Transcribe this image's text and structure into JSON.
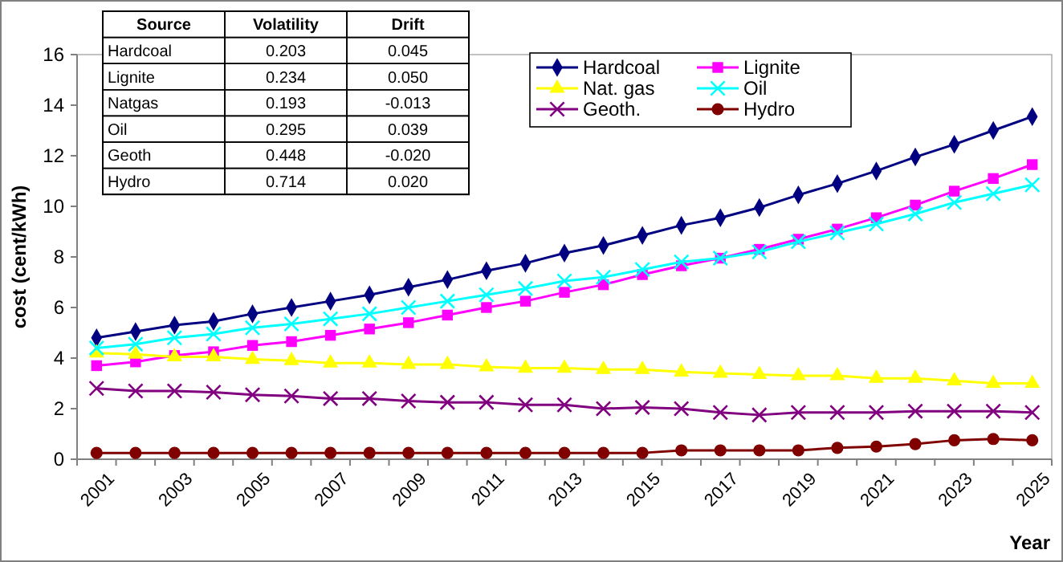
{
  "chart_data": {
    "type": "line",
    "ylabel": "cost (cent/kWh)",
    "xlabel": "Year",
    "categories": [
      "2001",
      null,
      "2003",
      null,
      "2005",
      null,
      "2007",
      null,
      "2009",
      null,
      "2011",
      null,
      "2013",
      null,
      "2015",
      null,
      "2017",
      null,
      "2019",
      null,
      "2021",
      null,
      "2023",
      null,
      "2025"
    ],
    "ylim": [
      0,
      16
    ],
    "yticks": [
      0,
      2,
      4,
      6,
      8,
      10,
      12,
      14,
      16
    ],
    "grid": false,
    "legend": "top right",
    "line_style": "solid",
    "series": [
      {
        "name": "Hardcoal",
        "color": "#000080",
        "marker": "diamond",
        "values": [
          4.8,
          5.05,
          5.3,
          5.45,
          5.75,
          6.0,
          6.25,
          6.5,
          6.8,
          7.1,
          7.45,
          7.75,
          8.15,
          8.45,
          8.85,
          9.25,
          9.55,
          9.95,
          10.45,
          10.9,
          11.4,
          11.95,
          12.45,
          13.0,
          13.55
        ]
      },
      {
        "name": "Lignite",
        "color": "#ff00ff",
        "marker": "square",
        "values": [
          3.7,
          3.85,
          4.1,
          4.25,
          4.5,
          4.65,
          4.9,
          5.15,
          5.4,
          5.7,
          6.0,
          6.25,
          6.6,
          6.9,
          7.3,
          7.65,
          7.95,
          8.3,
          8.7,
          9.1,
          9.55,
          10.05,
          10.6,
          11.1,
          11.65
        ]
      },
      {
        "name": "Nat. gas",
        "color": "#ffff00",
        "marker": "triangle",
        "values": [
          4.2,
          4.15,
          4.05,
          4.05,
          3.95,
          3.9,
          3.8,
          3.8,
          3.75,
          3.75,
          3.65,
          3.6,
          3.6,
          3.55,
          3.55,
          3.45,
          3.4,
          3.35,
          3.3,
          3.3,
          3.2,
          3.2,
          3.1,
          3.0,
          3.0
        ]
      },
      {
        "name": "Oil",
        "color": "#00ffff",
        "marker": "cross",
        "values": [
          4.4,
          4.55,
          4.8,
          4.95,
          5.2,
          5.35,
          5.55,
          5.75,
          6.0,
          6.25,
          6.5,
          6.75,
          7.05,
          7.2,
          7.5,
          7.8,
          7.95,
          8.2,
          8.6,
          8.95,
          9.3,
          9.7,
          10.15,
          10.5,
          10.85
        ]
      },
      {
        "name": "Geoth.",
        "color": "#800080",
        "marker": "cross",
        "values": [
          2.8,
          2.7,
          2.7,
          2.65,
          2.55,
          2.5,
          2.4,
          2.4,
          2.3,
          2.25,
          2.25,
          2.15,
          2.15,
          2.0,
          2.05,
          2.0,
          1.85,
          1.75,
          1.85,
          1.85,
          1.85,
          1.9,
          1.9,
          1.9,
          1.85
        ]
      },
      {
        "name": "Hydro",
        "color": "#800000",
        "marker": "circle",
        "values": [
          0.25,
          0.25,
          0.25,
          0.25,
          0.25,
          0.25,
          0.25,
          0.25,
          0.25,
          0.25,
          0.25,
          0.25,
          0.25,
          0.25,
          0.25,
          0.35,
          0.35,
          0.35,
          0.35,
          0.45,
          0.5,
          0.6,
          0.75,
          0.8,
          0.75
        ]
      }
    ],
    "annotations": [
      "Source",
      "Volatility",
      "Drift",
      "Hardcoal",
      "0.203",
      "0.045",
      "Lignite",
      "0.234",
      "0.050",
      "Natgas",
      "0.193",
      "-0.013",
      "Oil",
      "0.295",
      "0.039",
      "Geoth",
      "0.448",
      "-0.020",
      "Hydro",
      "0.714",
      "0.020"
    ]
  }
}
